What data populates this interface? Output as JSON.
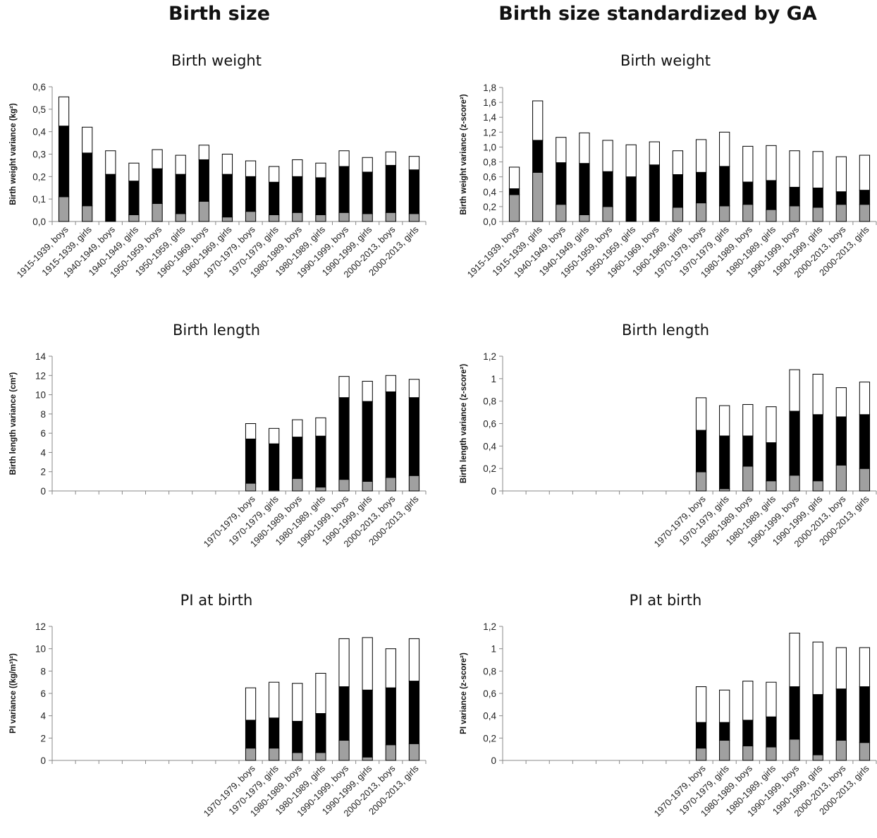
{
  "column_titles": [
    "Birth size",
    "Birth size standardized by GA"
  ],
  "chart_data": [
    {
      "type": "bar",
      "stacked": true,
      "title": "Birth weight",
      "ylabel": "Birth weight variance (kg²)",
      "ylim": [
        0,
        0.6
      ],
      "yticks": [
        "0,0",
        "0,1",
        "0,2",
        "0,3",
        "0,4",
        "0,5",
        "0,6"
      ],
      "categories": [
        "1915-1939, boys",
        "1915-1939, girls",
        "1940-1949, boys",
        "1940-1949, girls",
        "1950-1959, boys",
        "1950-1959, girls",
        "1960-1969, boys",
        "1960-1969, girls",
        "1970-1979, boys",
        "1970-1979, girls",
        "1980-1989, boys",
        "1980-1989, girls",
        "1990-1999, boys",
        "1990-1999, girls",
        "2000-2013, boys",
        "2000-2013, girls"
      ],
      "series": [
        {
          "color": "#a0a0a0",
          "values": [
            0.11,
            0.07,
            0.0,
            0.03,
            0.08,
            0.035,
            0.09,
            0.02,
            0.045,
            0.03,
            0.04,
            0.03,
            0.04,
            0.035,
            0.04,
            0.035
          ]
        },
        {
          "color": "#000000",
          "values": [
            0.315,
            0.235,
            0.21,
            0.15,
            0.155,
            0.175,
            0.185,
            0.19,
            0.155,
            0.145,
            0.16,
            0.165,
            0.205,
            0.185,
            0.21,
            0.195
          ]
        },
        {
          "color": "#ffffff",
          "values": [
            0.13,
            0.115,
            0.105,
            0.08,
            0.085,
            0.085,
            0.065,
            0.09,
            0.07,
            0.07,
            0.075,
            0.065,
            0.07,
            0.065,
            0.06,
            0.06
          ]
        }
      ]
    },
    {
      "type": "bar",
      "stacked": true,
      "title": "Birth weight",
      "ylabel": "Birth weight variance (z-score²)",
      "ylim": [
        0,
        1.8
      ],
      "yticks": [
        "0,0",
        "0,2",
        "0,4",
        "0,6",
        "0,8",
        "1,0",
        "1,2",
        "1,4",
        "1,6",
        "1,8"
      ],
      "categories": [
        "1915-1939, boys",
        "1915-1939, girls",
        "1940-1949, boys",
        "1940-1949, girls",
        "1950-1959, boys",
        "1950-1959, girls",
        "1960-1969, boys",
        "1960-1969, girls",
        "1970-1979, boys",
        "1970-1979, girls",
        "1980-1989, boys",
        "1980-1989, girls",
        "1990-1999, boys",
        "1990-1999, girls",
        "2000-2013, boys",
        "2000-2013, girls"
      ],
      "series": [
        {
          "color": "#a0a0a0",
          "values": [
            0.36,
            0.66,
            0.23,
            0.09,
            0.2,
            0.0,
            0.0,
            0.19,
            0.25,
            0.21,
            0.23,
            0.16,
            0.21,
            0.19,
            0.23,
            0.23
          ]
        },
        {
          "color": "#000000",
          "values": [
            0.08,
            0.43,
            0.56,
            0.69,
            0.47,
            0.6,
            0.76,
            0.44,
            0.41,
            0.53,
            0.3,
            0.39,
            0.25,
            0.26,
            0.17,
            0.19
          ]
        },
        {
          "color": "#ffffff",
          "values": [
            0.29,
            0.53,
            0.34,
            0.41,
            0.42,
            0.43,
            0.31,
            0.32,
            0.44,
            0.46,
            0.48,
            0.47,
            0.49,
            0.49,
            0.47,
            0.47
          ]
        }
      ]
    },
    {
      "type": "bar",
      "stacked": true,
      "title": "Birth length",
      "ylabel": "Birth length variance (cm²)",
      "ylim": [
        0,
        14
      ],
      "yticks": [
        "0",
        "2",
        "4",
        "6",
        "8",
        "10",
        "12",
        "14"
      ],
      "categories": [
        "",
        "",
        "",
        "",
        "",
        "",
        "",
        "",
        "1970-1979, boys",
        "1970-1979, girls",
        "1980-1989, boys",
        "1980-1989, girls",
        "1990-1999, boys",
        "1990-1999, girls",
        "2000-2013, boys",
        "2000-2013, girls"
      ],
      "series": [
        {
          "color": "#a0a0a0",
          "values": [
            null,
            null,
            null,
            null,
            null,
            null,
            null,
            null,
            0.8,
            0.1,
            1.3,
            0.4,
            1.2,
            1.0,
            1.4,
            1.6
          ]
        },
        {
          "color": "#000000",
          "values": [
            null,
            null,
            null,
            null,
            null,
            null,
            null,
            null,
            4.6,
            4.8,
            4.3,
            5.3,
            8.5,
            8.3,
            8.9,
            8.1
          ]
        },
        {
          "color": "#ffffff",
          "values": [
            null,
            null,
            null,
            null,
            null,
            null,
            null,
            null,
            1.6,
            1.6,
            1.8,
            1.9,
            2.2,
            2.1,
            1.7,
            1.9
          ]
        }
      ]
    },
    {
      "type": "bar",
      "stacked": true,
      "title": "Birth length",
      "ylabel": "Birth length variance (z-score²)",
      "ylim": [
        0,
        1.2
      ],
      "yticks": [
        "0",
        "0,2",
        "0,4",
        "0,6",
        "0,8",
        "1",
        "1,2"
      ],
      "categories": [
        "",
        "",
        "",
        "",
        "",
        "",
        "",
        "",
        "1970-1979, boys",
        "1970-1979, girls",
        "1980-1989, boys",
        "1980-1989, girls",
        "1990-1999, boys",
        "1990-1999, girls",
        "2000-2013, boys",
        "2000-2013, girls"
      ],
      "series": [
        {
          "color": "#a0a0a0",
          "values": [
            null,
            null,
            null,
            null,
            null,
            null,
            null,
            null,
            0.17,
            0.02,
            0.22,
            0.09,
            0.14,
            0.09,
            0.23,
            0.2
          ]
        },
        {
          "color": "#000000",
          "values": [
            null,
            null,
            null,
            null,
            null,
            null,
            null,
            null,
            0.37,
            0.47,
            0.27,
            0.34,
            0.57,
            0.59,
            0.43,
            0.48
          ]
        },
        {
          "color": "#ffffff",
          "values": [
            null,
            null,
            null,
            null,
            null,
            null,
            null,
            null,
            0.29,
            0.27,
            0.28,
            0.32,
            0.37,
            0.36,
            0.26,
            0.29
          ]
        }
      ]
    },
    {
      "type": "bar",
      "stacked": true,
      "title": "PI at birth",
      "ylabel": "PI variance ((kg/m³)²)",
      "ylim": [
        0,
        12
      ],
      "yticks": [
        "0",
        "2",
        "4",
        "6",
        "8",
        "10",
        "12"
      ],
      "categories": [
        "",
        "",
        "",
        "",
        "",
        "",
        "",
        "",
        "1970-1979, boys",
        "1970-1979, girls",
        "1980-1989, boys",
        "1980-1989, girls",
        "1990-1999, boys",
        "1990-1999, girls",
        "2000-2013, boys",
        "2000-2013, girls"
      ],
      "series": [
        {
          "color": "#a0a0a0",
          "values": [
            null,
            null,
            null,
            null,
            null,
            null,
            null,
            null,
            1.1,
            1.1,
            0.7,
            0.7,
            1.8,
            0.3,
            1.4,
            1.5
          ]
        },
        {
          "color": "#000000",
          "values": [
            null,
            null,
            null,
            null,
            null,
            null,
            null,
            null,
            2.5,
            2.7,
            2.8,
            3.5,
            4.8,
            6.0,
            5.1,
            5.6
          ]
        },
        {
          "color": "#ffffff",
          "values": [
            null,
            null,
            null,
            null,
            null,
            null,
            null,
            null,
            2.9,
            3.2,
            3.4,
            3.6,
            4.3,
            4.7,
            3.5,
            3.8
          ]
        }
      ]
    },
    {
      "type": "bar",
      "stacked": true,
      "title": "PI at birth",
      "ylabel": "PI variance (z-score²)",
      "ylim": [
        0,
        1.2
      ],
      "yticks": [
        "0",
        "0,2",
        "0,4",
        "0,6",
        "0,8",
        "1",
        "1,2"
      ],
      "categories": [
        "",
        "",
        "",
        "",
        "",
        "",
        "",
        "",
        "1970-1979, boys",
        "1970-1979, girls",
        "1980-1989, boys",
        "1980-1989, girls",
        "1990-1999, boys",
        "1990-1999, girls",
        "2000-2013, boys",
        "2000-2013, girls"
      ],
      "series": [
        {
          "color": "#a0a0a0",
          "values": [
            null,
            null,
            null,
            null,
            null,
            null,
            null,
            null,
            0.11,
            0.18,
            0.13,
            0.12,
            0.19,
            0.05,
            0.18,
            0.16
          ]
        },
        {
          "color": "#000000",
          "values": [
            null,
            null,
            null,
            null,
            null,
            null,
            null,
            null,
            0.23,
            0.16,
            0.23,
            0.27,
            0.47,
            0.54,
            0.46,
            0.5
          ]
        },
        {
          "color": "#ffffff",
          "values": [
            null,
            null,
            null,
            null,
            null,
            null,
            null,
            null,
            0.32,
            0.29,
            0.35,
            0.31,
            0.48,
            0.47,
            0.37,
            0.35
          ]
        }
      ]
    }
  ]
}
